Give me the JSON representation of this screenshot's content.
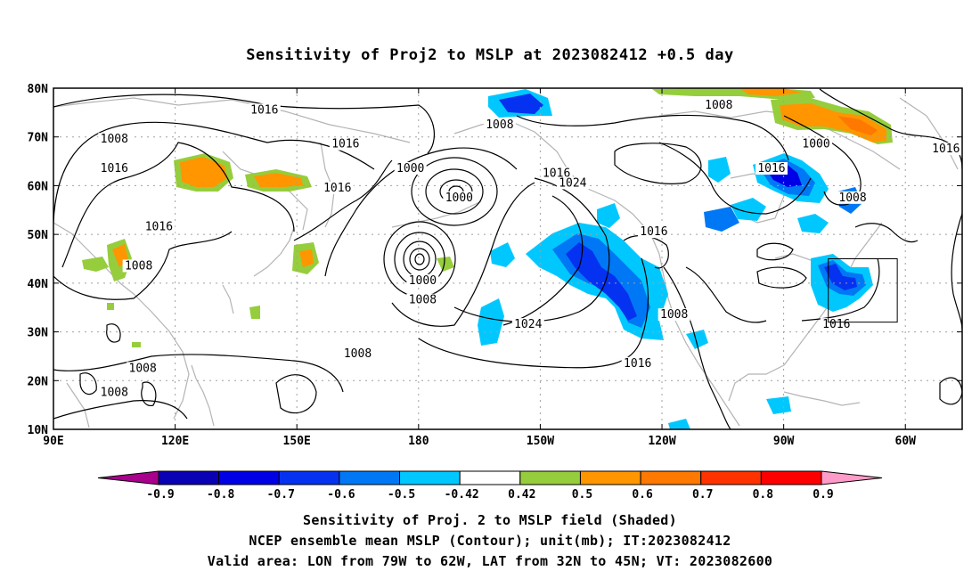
{
  "title": "Sensitivity of Proj2 to MSLP at 2023082412 +0.5 day",
  "map": {
    "lon_ticks": [
      {
        "lon": 90,
        "label": "90E"
      },
      {
        "lon": 120,
        "label": "120E"
      },
      {
        "lon": 150,
        "label": "150E"
      },
      {
        "lon": 180,
        "label": "180"
      },
      {
        "lon": 210,
        "label": "150W"
      },
      {
        "lon": 240,
        "label": "120W"
      },
      {
        "lon": 270,
        "label": "90W"
      },
      {
        "lon": 300,
        "label": "60W"
      }
    ],
    "lat_ticks": [
      {
        "lat": 10,
        "label": "10N"
      },
      {
        "lat": 20,
        "label": "20N"
      },
      {
        "lat": 30,
        "label": "30N"
      },
      {
        "lat": 40,
        "label": "40N"
      },
      {
        "lat": 50,
        "label": "50N"
      },
      {
        "lat": 60,
        "label": "60N"
      },
      {
        "lat": 70,
        "label": "70N"
      },
      {
        "lat": 80,
        "label": "80N"
      }
    ],
    "lon_range": [
      90,
      314
    ],
    "lat_range": [
      10,
      80
    ],
    "grid": "dotted",
    "colors": {
      "coast": "#b4b4b4",
      "contour": "#000000",
      "grid": "#a0a0a0"
    },
    "valid_box": {
      "lon": [
        281,
        298
      ],
      "lat": [
        32,
        45
      ]
    },
    "contour_labels": [
      {
        "text": "1016",
        "lon": 142,
        "lat": 75
      },
      {
        "text": "1008",
        "lon": 105,
        "lat": 69
      },
      {
        "text": "1016",
        "lon": 105,
        "lat": 63
      },
      {
        "text": "1016",
        "lon": 162,
        "lat": 68
      },
      {
        "text": "1016",
        "lon": 160,
        "lat": 59
      },
      {
        "text": "1016",
        "lon": 116,
        "lat": 51
      },
      {
        "text": "1008",
        "lon": 111,
        "lat": 43
      },
      {
        "text": "1000",
        "lon": 178,
        "lat": 63
      },
      {
        "text": "1008",
        "lon": 200,
        "lat": 72
      },
      {
        "text": "1000",
        "lon": 190,
        "lat": 57
      },
      {
        "text": "1016",
        "lon": 214,
        "lat": 62
      },
      {
        "text": "1024",
        "lon": 218,
        "lat": 60
      },
      {
        "text": "1000",
        "lon": 181,
        "lat": 40
      },
      {
        "text": "1008",
        "lon": 181,
        "lat": 36
      },
      {
        "text": "1024",
        "lon": 207,
        "lat": 31
      },
      {
        "text": "1008",
        "lon": 254,
        "lat": 76
      },
      {
        "text": "1000",
        "lon": 278,
        "lat": 68
      },
      {
        "text": "1016",
        "lon": 267,
        "lat": 63
      },
      {
        "text": "1008",
        "lon": 287,
        "lat": 57
      },
      {
        "text": "1016",
        "lon": 238,
        "lat": 50
      },
      {
        "text": "1008",
        "lon": 243,
        "lat": 33
      },
      {
        "text": "1016",
        "lon": 234,
        "lat": 23
      },
      {
        "text": "1008",
        "lon": 112,
        "lat": 22
      },
      {
        "text": "1008",
        "lon": 105,
        "lat": 17
      },
      {
        "text": "1008",
        "lon": 165,
        "lat": 25
      },
      {
        "text": "1016",
        "lon": 283,
        "lat": 31
      },
      {
        "text": "1016",
        "lon": 310,
        "lat": 67
      }
    ]
  },
  "colorbar": {
    "tick_labels": [
      "-0.9",
      "-0.8",
      "-0.7",
      "-0.6",
      "-0.5",
      "-0.42",
      "0.42",
      "0.5",
      "0.6",
      "0.7",
      "0.8",
      "0.9"
    ],
    "colors": [
      "#a8008c",
      "#0a00b4",
      "#0000e6",
      "#0532f0",
      "#0078f5",
      "#00c8ff",
      "#ffffff",
      "#96cd3c",
      "#ff9600",
      "#ff7800",
      "#ff3200",
      "#ff0000",
      "#ff9bc8"
    ]
  },
  "captions": [
    "Sensitivity of Proj. 2 to MSLP field (Shaded)",
    "NCEP ensemble mean MSLP (Contour); unit(mb); IT:2023082412",
    "Valid area: LON from 79W to 62W, LAT from 32N to 45N; VT: 2023082600"
  ]
}
